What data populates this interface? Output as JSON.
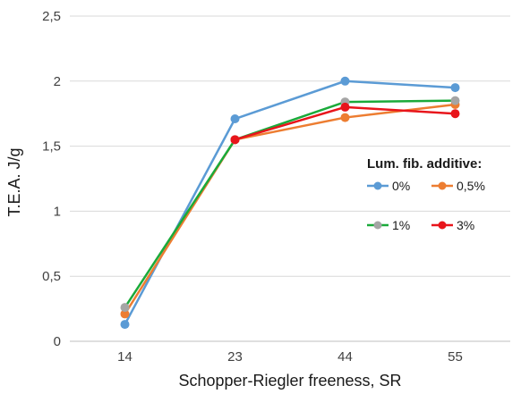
{
  "chart_data": {
    "type": "line",
    "xlabel": "Schopper-Riegler freeness, SR",
    "ylabel": "T.E.A. J/g",
    "categories": [
      "14",
      "23",
      "44",
      "55"
    ],
    "ylim": [
      0,
      2.5
    ],
    "yticks": [
      "0",
      "0,5",
      "1",
      "1,5",
      "2",
      "2,5"
    ],
    "ytick_values": [
      0,
      0.5,
      1,
      1.5,
      2,
      2.5
    ],
    "grid": true,
    "legend_title": "Lum. fib. additive:",
    "legend_position": "right",
    "series": [
      {
        "name": "0%",
        "color": "#5b9bd5",
        "values": [
          0.13,
          1.71,
          2.0,
          1.95
        ]
      },
      {
        "name": "0,5%",
        "color": "#ed7d31",
        "values": [
          0.21,
          1.55,
          1.72,
          1.82
        ]
      },
      {
        "name": "1%",
        "color": "#1aaa3a",
        "marker_color": "#a5a5a5",
        "values": [
          0.26,
          1.55,
          1.84,
          1.85
        ]
      },
      {
        "name": "3%",
        "color": "#e8151b",
        "values": [
          null,
          1.55,
          1.8,
          1.75
        ]
      }
    ]
  }
}
